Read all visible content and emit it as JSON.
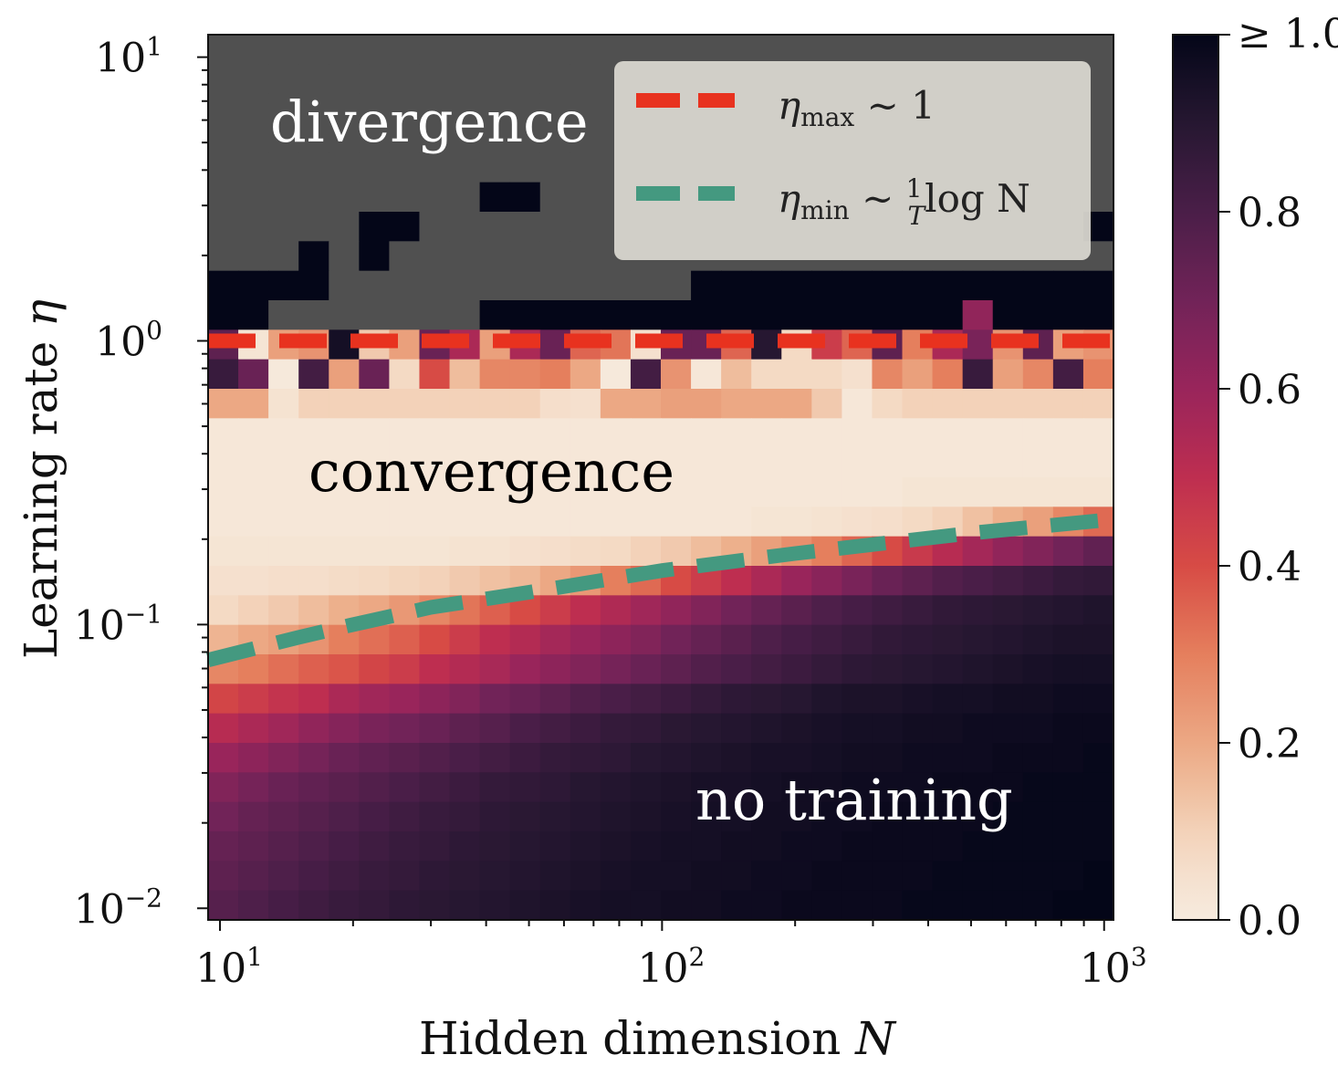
{
  "chart_data": {
    "type": "heatmap",
    "title": "",
    "xlabel": "Hidden dimension",
    "xlabel_var": "N",
    "ylabel": "Learning rate",
    "ylabel_var": "η",
    "xscale": "log",
    "yscale": "log",
    "xlim": [
      10,
      1000
    ],
    "ylim": [
      0.01,
      10
    ],
    "x_ticks": [
      {
        "value": 10,
        "base": "10",
        "exp": "1"
      },
      {
        "value": 100,
        "base": "10",
        "exp": "2"
      },
      {
        "value": 1000,
        "base": "10",
        "exp": "3"
      }
    ],
    "y_ticks": [
      {
        "value": 10,
        "base": "10",
        "exp": "1"
      },
      {
        "value": 1,
        "base": "10",
        "exp": "0"
      },
      {
        "value": 0.1,
        "base": "10",
        "exp": "−1"
      },
      {
        "value": 0.01,
        "base": "10",
        "exp": "−2"
      }
    ],
    "grid_cols": 30,
    "grid_rows": 30,
    "divergence_color": "#505050",
    "cell_values_note": "rows listed from top (η≈10) to bottom (η≈0.01); null = divergence",
    "values": [
      [
        null,
        null,
        null,
        null,
        null,
        null,
        null,
        null,
        null,
        null,
        null,
        null,
        null,
        null,
        null,
        null,
        null,
        null,
        null,
        null,
        null,
        null,
        null,
        null,
        null,
        null,
        null,
        null,
        null,
        null
      ],
      [
        null,
        null,
        null,
        null,
        null,
        null,
        null,
        null,
        null,
        null,
        null,
        null,
        null,
        null,
        null,
        null,
        null,
        null,
        null,
        null,
        null,
        null,
        null,
        null,
        null,
        null,
        null,
        null,
        null,
        null
      ],
      [
        null,
        null,
        null,
        null,
        null,
        null,
        null,
        null,
        null,
        null,
        null,
        null,
        null,
        null,
        null,
        null,
        null,
        null,
        null,
        null,
        null,
        null,
        null,
        null,
        null,
        null,
        null,
        null,
        null,
        null
      ],
      [
        null,
        null,
        null,
        null,
        null,
        null,
        null,
        null,
        null,
        null,
        null,
        null,
        null,
        null,
        null,
        null,
        null,
        null,
        null,
        null,
        null,
        null,
        null,
        null,
        null,
        null,
        null,
        null,
        null,
        null
      ],
      [
        null,
        null,
        null,
        null,
        null,
        null,
        null,
        null,
        null,
        null,
        null,
        null,
        null,
        null,
        null,
        null,
        null,
        null,
        null,
        null,
        null,
        null,
        null,
        null,
        null,
        null,
        null,
        null,
        null,
        null
      ],
      [
        null,
        null,
        null,
        null,
        null,
        null,
        null,
        null,
        null,
        1.0,
        1.0,
        null,
        null,
        null,
        null,
        null,
        null,
        null,
        null,
        null,
        null,
        null,
        null,
        null,
        null,
        null,
        null,
        null,
        null,
        null
      ],
      [
        null,
        null,
        null,
        null,
        null,
        1.0,
        1.0,
        null,
        null,
        null,
        null,
        null,
        null,
        null,
        null,
        null,
        null,
        null,
        null,
        null,
        null,
        null,
        null,
        null,
        null,
        null,
        null,
        null,
        null,
        1.0
      ],
      [
        null,
        null,
        null,
        1.0,
        null,
        1.0,
        null,
        null,
        null,
        null,
        null,
        null,
        null,
        null,
        null,
        null,
        null,
        null,
        null,
        null,
        null,
        null,
        null,
        null,
        null,
        null,
        null,
        null,
        null,
        null
      ],
      [
        1.0,
        1.0,
        1.0,
        1.0,
        null,
        null,
        null,
        null,
        null,
        null,
        null,
        null,
        null,
        null,
        null,
        null,
        1.0,
        1.0,
        1.0,
        1.0,
        1.0,
        1.0,
        1.0,
        1.0,
        1.0,
        1.0,
        1.0,
        1.0,
        1.0,
        1.0
      ],
      [
        1.0,
        1.0,
        null,
        null,
        null,
        null,
        null,
        null,
        null,
        1.0,
        1.0,
        1.0,
        1.0,
        1.0,
        1.0,
        1.0,
        1.0,
        1.0,
        1.0,
        1.0,
        1.0,
        1.0,
        1.0,
        1.0,
        1.0,
        0.62,
        1.0,
        1.0,
        1.0,
        1.0
      ],
      [
        0.75,
        0.03,
        0.22,
        0.25,
        0.95,
        0.12,
        0.22,
        0.72,
        0.55,
        0.22,
        0.55,
        0.72,
        0.35,
        0.32,
        0.05,
        0.72,
        0.72,
        0.35,
        0.9,
        0.08,
        0.45,
        0.35,
        0.75,
        0.3,
        0.55,
        0.68,
        0.25,
        0.75,
        0.22,
        0.25
      ],
      [
        0.85,
        0.72,
        0.01,
        0.82,
        0.22,
        0.72,
        0.08,
        0.4,
        0.15,
        0.28,
        0.28,
        0.3,
        0.2,
        0.01,
        0.82,
        0.25,
        0.02,
        0.15,
        0.08,
        0.08,
        0.08,
        0.05,
        0.28,
        0.22,
        0.3,
        0.85,
        0.22,
        0.28,
        0.82,
        0.3
      ],
      [
        0.2,
        0.2,
        0.04,
        0.1,
        0.1,
        0.1,
        0.1,
        0.1,
        0.1,
        0.1,
        0.1,
        0.06,
        0.05,
        0.2,
        0.2,
        0.22,
        0.22,
        0.2,
        0.2,
        0.2,
        0.12,
        0.02,
        0.08,
        0.1,
        0.1,
        0.1,
        0.1,
        0.1,
        0.1,
        0.1
      ],
      [
        0.02,
        0.02,
        0.02,
        0.02,
        0.02,
        0.02,
        0.02,
        0.02,
        0.02,
        0.02,
        0.02,
        0.02,
        0.02,
        0.02,
        0.02,
        0.02,
        0.02,
        0.02,
        0.02,
        0.02,
        0.02,
        0.02,
        0.02,
        0.02,
        0.02,
        0.02,
        0.02,
        0.02,
        0.02,
        0.02
      ],
      [
        0.02,
        0.02,
        0.02,
        0.02,
        0.02,
        0.02,
        0.02,
        0.02,
        0.02,
        0.02,
        0.02,
        0.02,
        0.02,
        0.02,
        0.02,
        0.02,
        0.02,
        0.02,
        0.02,
        0.02,
        0.02,
        0.02,
        0.02,
        0.02,
        0.02,
        0.02,
        0.02,
        0.02,
        0.02,
        0.02
      ],
      [
        0.02,
        0.02,
        0.02,
        0.02,
        0.02,
        0.02,
        0.02,
        0.02,
        0.02,
        0.02,
        0.02,
        0.02,
        0.02,
        0.02,
        0.02,
        0.02,
        0.02,
        0.02,
        0.02,
        0.02,
        0.02,
        0.02,
        0.02,
        0.03,
        0.03,
        0.03,
        0.03,
        0.03,
        0.03,
        0.03
      ],
      [
        0.02,
        0.02,
        0.02,
        0.02,
        0.02,
        0.02,
        0.02,
        0.02,
        0.02,
        0.02,
        0.02,
        0.02,
        0.02,
        0.02,
        0.02,
        0.02,
        0.02,
        0.02,
        0.03,
        0.03,
        0.04,
        0.05,
        0.06,
        0.08,
        0.1,
        0.14,
        0.18,
        0.22,
        0.28,
        0.34
      ],
      [
        0.03,
        0.03,
        0.03,
        0.03,
        0.03,
        0.03,
        0.03,
        0.03,
        0.04,
        0.04,
        0.05,
        0.06,
        0.07,
        0.08,
        0.1,
        0.12,
        0.15,
        0.18,
        0.22,
        0.26,
        0.3,
        0.35,
        0.4,
        0.46,
        0.52,
        0.57,
        0.62,
        0.66,
        0.7,
        0.74
      ],
      [
        0.05,
        0.05,
        0.06,
        0.06,
        0.07,
        0.08,
        0.09,
        0.1,
        0.12,
        0.14,
        0.16,
        0.2,
        0.24,
        0.3,
        0.34,
        0.4,
        0.45,
        0.5,
        0.55,
        0.6,
        0.64,
        0.68,
        0.72,
        0.75,
        0.78,
        0.8,
        0.82,
        0.84,
        0.86,
        0.87
      ],
      [
        0.08,
        0.1,
        0.12,
        0.15,
        0.18,
        0.2,
        0.24,
        0.28,
        0.32,
        0.36,
        0.4,
        0.45,
        0.5,
        0.54,
        0.58,
        0.62,
        0.66,
        0.7,
        0.73,
        0.76,
        0.79,
        0.81,
        0.83,
        0.85,
        0.87,
        0.88,
        0.89,
        0.9,
        0.91,
        0.92
      ],
      [
        0.17,
        0.2,
        0.22,
        0.25,
        0.3,
        0.33,
        0.36,
        0.4,
        0.45,
        0.5,
        0.53,
        0.57,
        0.6,
        0.63,
        0.66,
        0.7,
        0.73,
        0.76,
        0.79,
        0.81,
        0.83,
        0.85,
        0.87,
        0.88,
        0.89,
        0.9,
        0.91,
        0.92,
        0.93,
        0.93
      ],
      [
        0.28,
        0.3,
        0.33,
        0.36,
        0.38,
        0.42,
        0.45,
        0.5,
        0.53,
        0.56,
        0.6,
        0.63,
        0.66,
        0.69,
        0.72,
        0.75,
        0.78,
        0.8,
        0.82,
        0.84,
        0.86,
        0.88,
        0.89,
        0.9,
        0.91,
        0.92,
        0.93,
        0.94,
        0.95,
        0.95
      ],
      [
        0.42,
        0.45,
        0.48,
        0.5,
        0.55,
        0.58,
        0.6,
        0.63,
        0.66,
        0.7,
        0.72,
        0.75,
        0.78,
        0.8,
        0.82,
        0.84,
        0.86,
        0.88,
        0.89,
        0.9,
        0.92,
        0.93,
        0.93,
        0.94,
        0.95,
        0.95,
        0.96,
        0.96,
        0.97,
        0.97
      ],
      [
        0.52,
        0.55,
        0.58,
        0.62,
        0.65,
        0.68,
        0.7,
        0.72,
        0.75,
        0.77,
        0.8,
        0.82,
        0.84,
        0.86,
        0.87,
        0.89,
        0.9,
        0.91,
        0.92,
        0.93,
        0.94,
        0.95,
        0.95,
        0.96,
        0.96,
        0.97,
        0.97,
        0.97,
        0.98,
        0.98
      ],
      [
        0.6,
        0.63,
        0.66,
        0.69,
        0.72,
        0.74,
        0.76,
        0.78,
        0.8,
        0.82,
        0.84,
        0.86,
        0.87,
        0.88,
        0.9,
        0.91,
        0.92,
        0.93,
        0.94,
        0.94,
        0.95,
        0.96,
        0.96,
        0.97,
        0.97,
        0.97,
        0.98,
        0.98,
        0.98,
        0.99
      ],
      [
        0.66,
        0.69,
        0.72,
        0.74,
        0.76,
        0.78,
        0.8,
        0.82,
        0.84,
        0.86,
        0.87,
        0.88,
        0.9,
        0.91,
        0.92,
        0.93,
        0.94,
        0.94,
        0.95,
        0.96,
        0.96,
        0.97,
        0.97,
        0.97,
        0.98,
        0.98,
        0.98,
        0.99,
        0.99,
        0.99
      ],
      [
        0.7,
        0.73,
        0.75,
        0.77,
        0.79,
        0.81,
        0.83,
        0.85,
        0.86,
        0.88,
        0.89,
        0.9,
        0.91,
        0.92,
        0.93,
        0.94,
        0.95,
        0.95,
        0.96,
        0.96,
        0.97,
        0.97,
        0.98,
        0.98,
        0.98,
        0.98,
        0.99,
        0.99,
        0.99,
        0.99
      ],
      [
        0.73,
        0.75,
        0.77,
        0.79,
        0.81,
        0.83,
        0.85,
        0.86,
        0.88,
        0.89,
        0.9,
        0.91,
        0.92,
        0.93,
        0.94,
        0.95,
        0.95,
        0.96,
        0.96,
        0.97,
        0.97,
        0.98,
        0.98,
        0.98,
        0.98,
        0.99,
        0.99,
        0.99,
        0.99,
        0.99
      ],
      [
        0.75,
        0.77,
        0.79,
        0.81,
        0.83,
        0.85,
        0.86,
        0.88,
        0.89,
        0.9,
        0.91,
        0.92,
        0.93,
        0.94,
        0.95,
        0.95,
        0.96,
        0.96,
        0.97,
        0.97,
        0.98,
        0.98,
        0.98,
        0.98,
        0.99,
        0.99,
        0.99,
        0.99,
        0.99,
        1.0
      ],
      [
        0.77,
        0.79,
        0.81,
        0.83,
        0.85,
        0.86,
        0.88,
        0.89,
        0.9,
        0.91,
        0.92,
        0.93,
        0.94,
        0.95,
        0.95,
        0.96,
        0.96,
        0.97,
        0.97,
        0.98,
        0.98,
        0.98,
        0.98,
        0.99,
        0.99,
        0.99,
        0.99,
        0.99,
        1.0,
        1.0
      ]
    ],
    "lines": [
      {
        "name": "eta_max",
        "label_main": "η",
        "label_sub": "max",
        "label_rest": " ∼ 1",
        "color": "#e8321f",
        "style": "dashed",
        "x": [
          10,
          1000
        ],
        "y": [
          1.0,
          1.0
        ]
      },
      {
        "name": "eta_min",
        "label_main": "η",
        "label_sub": "min",
        "label_rest": " ∼ ",
        "label_frac_num": "1",
        "label_frac_den": "T",
        "label_after": "log N",
        "color": "#449980",
        "style": "dashed",
        "x": [
          10,
          15,
          20,
          30,
          50,
          100,
          200,
          500,
          1000
        ],
        "y": [
          0.075,
          0.09,
          0.1,
          0.115,
          0.13,
          0.155,
          0.178,
          0.21,
          0.235
        ]
      }
    ],
    "legend": {
      "placement": "top-right"
    },
    "colorbar": {
      "colormap": "rocket_r",
      "range": [
        0.0,
        1.0
      ],
      "ticks": [
        {
          "value": 1.0,
          "label": "≥ 1.0"
        },
        {
          "value": 0.8,
          "label": "0.8"
        },
        {
          "value": 0.6,
          "label": "0.6"
        },
        {
          "value": 0.4,
          "label": "0.4"
        },
        {
          "value": 0.2,
          "label": "0.2"
        },
        {
          "value": 0.0,
          "label": "0.0"
        }
      ]
    },
    "annotations": [
      {
        "text": "divergence",
        "x": 20,
        "y": 4.5,
        "color": "#ffffff"
      },
      {
        "text": "convergence",
        "x": 22,
        "y": 0.3,
        "color": "#000000"
      },
      {
        "text": "no training",
        "x": 230,
        "y": 0.022,
        "color": "#ffffff"
      }
    ]
  }
}
